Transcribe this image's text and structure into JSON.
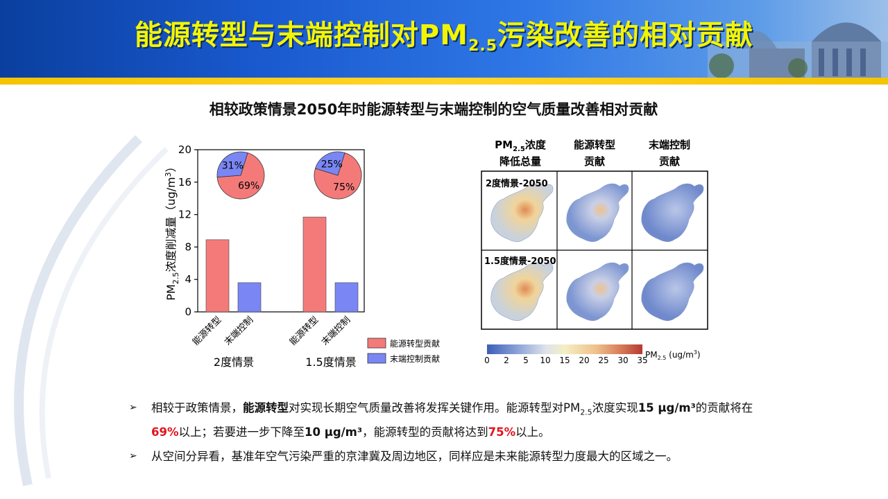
{
  "slide": {
    "title_prefix": "能源转型与末端控制对PM",
    "title_sub": "2.5",
    "title_suffix": "污染改善的相对贡献"
  },
  "figure": {
    "title": "相较政策情景2050年时能源转型与末端控制的空气质量改善相对贡献"
  },
  "chart_data": [
    {
      "type": "bar",
      "ylabel_prefix": "PM",
      "ylabel_sub": "2.5",
      "ylabel_main": "浓度削减量（ug/m",
      "ylabel_sup": "3",
      "ylabel_end": "）",
      "ylim": [
        0,
        20
      ],
      "yticks": [
        "0",
        "4",
        "8",
        "12",
        "16",
        "20"
      ],
      "groups": [
        {
          "name": "2度情景",
          "categories": [
            "能源转型",
            "末端控制"
          ],
          "values": [
            8.9,
            3.6
          ],
          "pie": [
            {
              "label": "69%",
              "value": 69
            },
            {
              "label": "31%",
              "value": 31
            }
          ]
        },
        {
          "name": "1.5度情景",
          "categories": [
            "能源转型",
            "末端控制"
          ],
          "values": [
            11.7,
            3.6
          ],
          "pie": [
            {
              "label": "75%",
              "value": 75
            },
            {
              "label": "25%",
              "value": 25
            }
          ]
        }
      ],
      "series_colors": {
        "energy": "#f47a7a",
        "control": "#7a86f4"
      },
      "legend": [
        "能源转型贡献",
        "末端控制贡献"
      ],
      "legend_position": "bottom-right"
    },
    {
      "type": "heatmap",
      "columns": [
        {
          "line1_prefix": "PM",
          "line1_sub": "2.5",
          "line1_suffix": "浓度",
          "line2": "降低总量"
        },
        {
          "line1": "能源转型",
          "line2": "贡献"
        },
        {
          "line1": "末端控制",
          "line2": "贡献"
        }
      ],
      "rows": [
        "2度情景-2050",
        "1.5度情景-2050"
      ],
      "colorbar_ticks": [
        "0",
        "2",
        "5",
        "10",
        "15",
        "20",
        "25",
        "30",
        "35"
      ],
      "colorbar_label_prefix": "PM",
      "colorbar_label_sub": "2.5",
      "colorbar_label_suffix": " (ug/m",
      "colorbar_label_sup": "3",
      "colorbar_label_end": ")"
    }
  ],
  "bullets": {
    "b1": {
      "t1": "相较于政策情景，",
      "t2": "能源转型",
      "t3": "对实现长期空气质量改善将发挥关键作用。能源转型对PM",
      "t3sub": "2.5",
      "t4": "浓度实现",
      "t5": "15 μg/m³",
      "t6": "的贡献将在",
      "t7": "69%",
      "t8": "以上；若要进一步下降至",
      "t9": "10 μg/m³",
      "t10": "，能源转型的贡献将达到",
      "t11": "75%",
      "t12": "以上。"
    },
    "b2": {
      "t1": "从空间分异看，基准年空气污染严重的京津冀及周边地区，同样应是未来能源转型力度最大的区域之一。"
    }
  }
}
